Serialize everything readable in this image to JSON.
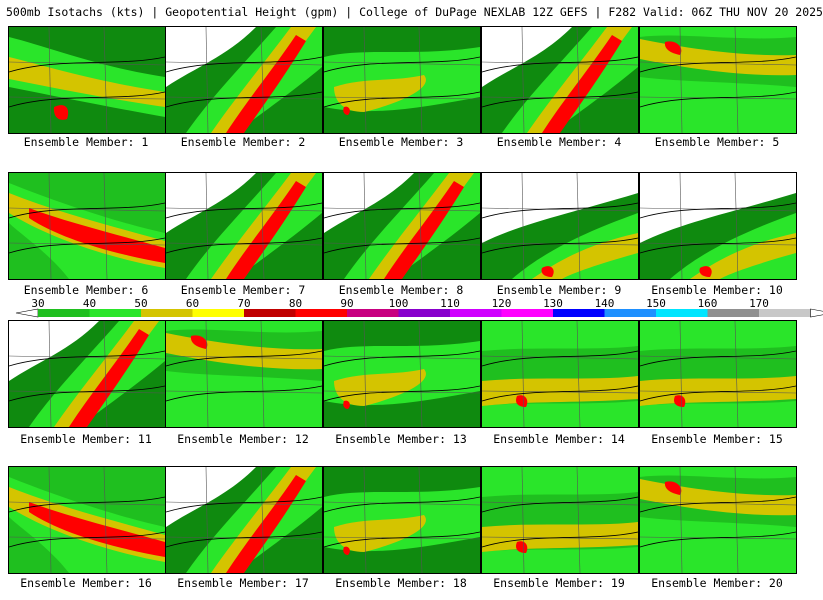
{
  "header": {
    "title": "500mb Isotachs (kts) | Geopotential Height (gpm) | College of DuPage NEXLAB   12Z GEFS | F282 Valid: 06Z THU NOV 20 2025"
  },
  "colors": {
    "c30": "#0f8a0f",
    "c40": "#1fbf1f",
    "c50": "#2ae52a",
    "c60": "#d4c400",
    "c70": "#ffff00",
    "c80": "#c00000",
    "c90": "#ff0000",
    "c100": "#c80080",
    "c110": "#8800cc",
    "c120": "#d000ff",
    "c130": "#ff00ff",
    "c140": "#0000ff",
    "c150": "#1e90ff",
    "c160": "#00e5ff",
    "c170": "#909090",
    "c180": "#c8c8c8"
  },
  "colorbar": {
    "ticks": [
      "30",
      "40",
      "50",
      "60",
      "70",
      "80",
      "90",
      "100",
      "110",
      "120",
      "130",
      "140",
      "150",
      "160",
      "170"
    ]
  },
  "panels": [
    {
      "label": "Ensemble Member: 1",
      "style": "west"
    },
    {
      "label": "Ensemble Member: 2",
      "style": "diag"
    },
    {
      "label": "Ensemble Member: 3",
      "style": "broad"
    },
    {
      "label": "Ensemble Member: 4",
      "style": "diag"
    },
    {
      "label": "Ensemble Member: 5",
      "style": "north"
    },
    {
      "label": "Ensemble Member: 6",
      "style": "westjet"
    },
    {
      "label": "Ensemble Member: 7",
      "style": "diag"
    },
    {
      "label": "Ensemble Member: 8",
      "style": "diag"
    },
    {
      "label": "Ensemble Member: 9",
      "style": "east"
    },
    {
      "label": "Ensemble Member: 10",
      "style": "east"
    },
    {
      "label": "Ensemble Member: 11",
      "style": "diag"
    },
    {
      "label": "Ensemble Member: 12",
      "style": "north"
    },
    {
      "label": "Ensemble Member: 13",
      "style": "broad"
    },
    {
      "label": "Ensemble Member: 14",
      "style": "south"
    },
    {
      "label": "Ensemble Member: 15",
      "style": "south"
    },
    {
      "label": "Ensemble Member: 16",
      "style": "westjet"
    },
    {
      "label": "Ensemble Member: 17",
      "style": "diag"
    },
    {
      "label": "Ensemble Member: 18",
      "style": "broad"
    },
    {
      "label": "Ensemble Member: 19",
      "style": "south"
    },
    {
      "label": "Ensemble Member: 20",
      "style": "north"
    }
  ]
}
